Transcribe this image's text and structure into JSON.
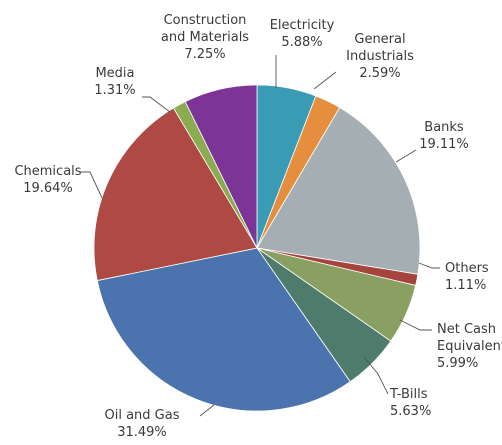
{
  "chart_data": {
    "type": "pie",
    "title": "",
    "start_direction": "12 o'clock",
    "direction": "clockwise",
    "legend": "none",
    "slices": [
      {
        "label": "Electricity",
        "value": 5.88,
        "display": "5.88%",
        "color": "#3a9bb5"
      },
      {
        "label": "General Industrials",
        "value": 2.59,
        "display": "2.59%",
        "color": "#e58f3e"
      },
      {
        "label": "Banks",
        "value": 19.11,
        "display": "19.11%",
        "color": "#a5aeb3"
      },
      {
        "label": "Others",
        "value": 1.11,
        "display": "1.11%",
        "color": "#a4443c"
      },
      {
        "label": "Net Cash Equivalents",
        "value": 5.99,
        "display": "5.99%",
        "color": "#8aa063"
      },
      {
        "label": "T-Bills",
        "value": 5.63,
        "display": "5.63%",
        "color": "#4e7b6b"
      },
      {
        "label": "Oil and Gas",
        "value": 31.49,
        "display": "31.49%",
        "color": "#4b73ad"
      },
      {
        "label": "Chemicals",
        "value": 19.64,
        "display": "19.64%",
        "color": "#ae4a43"
      },
      {
        "label": "Media",
        "value": 1.31,
        "display": "1.31%",
        "color": "#8aab4f"
      },
      {
        "label": "Construction and Materials",
        "value": 7.25,
        "display": "7.25%",
        "color": "#7c3596"
      }
    ]
  }
}
